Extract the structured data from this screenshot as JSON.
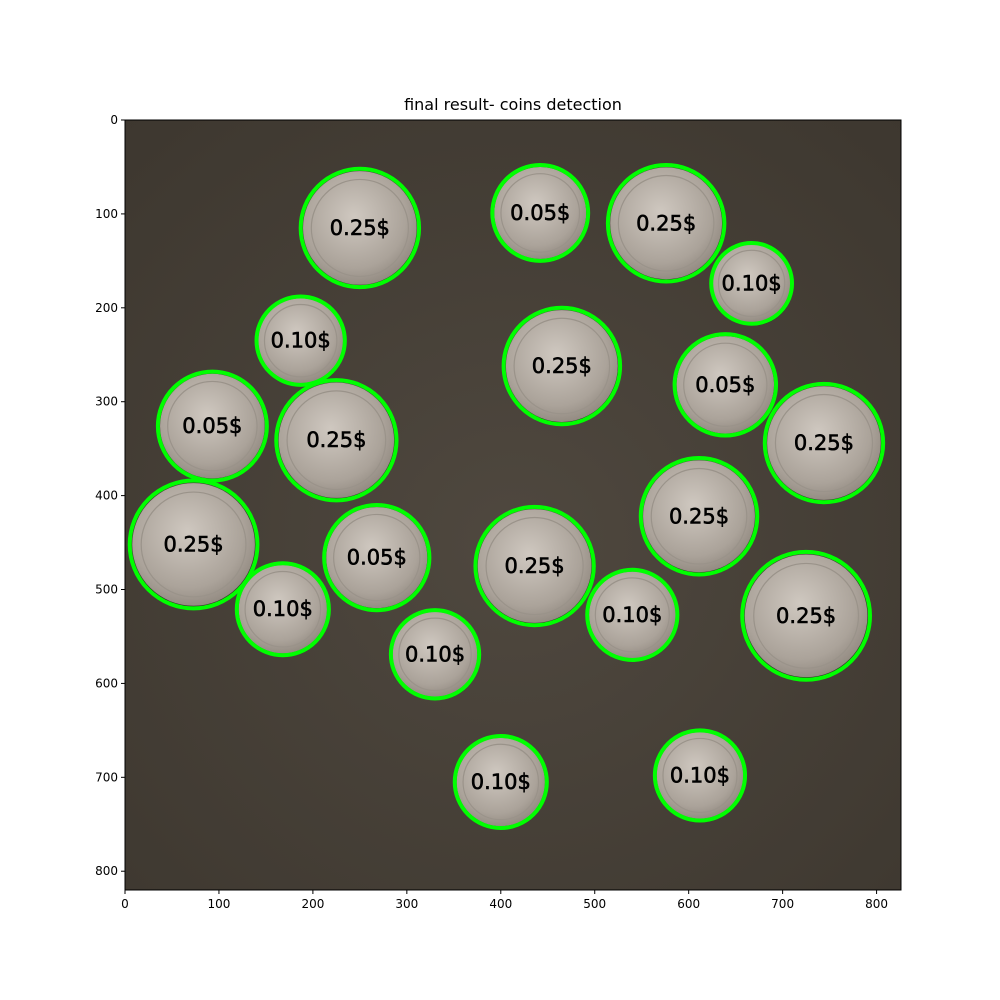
{
  "figure": {
    "title": "final result- coins detection"
  },
  "image_axes": {
    "x_ticks": [
      0,
      100,
      200,
      300,
      400,
      500,
      600,
      700,
      800
    ],
    "y_ticks": [
      0,
      100,
      200,
      300,
      400,
      500,
      600,
      700,
      800
    ],
    "x_range": [
      0,
      826
    ],
    "y_range": [
      0,
      820
    ],
    "grid": false
  },
  "colors": {
    "background": "#4a433b",
    "circle": "#00ff00",
    "coin_fill": "#b3aca4",
    "label_text": "#000000"
  },
  "detections": [
    {
      "label": "0.25$",
      "cx": 250,
      "cy": 115,
      "r": 63
    },
    {
      "label": "0.05$",
      "cx": 442,
      "cy": 99,
      "r": 51
    },
    {
      "label": "0.25$",
      "cx": 576,
      "cy": 110,
      "r": 62
    },
    {
      "label": "0.10$",
      "cx": 667,
      "cy": 174,
      "r": 43
    },
    {
      "label": "0.10$",
      "cx": 187,
      "cy": 235,
      "r": 47
    },
    {
      "label": "0.25$",
      "cx": 465,
      "cy": 262,
      "r": 62
    },
    {
      "label": "0.05$",
      "cx": 639,
      "cy": 282,
      "r": 54
    },
    {
      "label": "0.05$",
      "cx": 93,
      "cy": 326,
      "r": 58
    },
    {
      "label": "0.25$",
      "cx": 225,
      "cy": 341,
      "r": 64
    },
    {
      "label": "0.25$",
      "cx": 744,
      "cy": 344,
      "r": 63
    },
    {
      "label": "0.25$",
      "cx": 611,
      "cy": 422,
      "r": 62
    },
    {
      "label": "0.25$",
      "cx": 73,
      "cy": 452,
      "r": 68
    },
    {
      "label": "0.05$",
      "cx": 268,
      "cy": 466,
      "r": 56
    },
    {
      "label": "0.25$",
      "cx": 436,
      "cy": 475,
      "r": 63
    },
    {
      "label": "0.10$",
      "cx": 168,
      "cy": 521,
      "r": 49
    },
    {
      "label": "0.10$",
      "cx": 540,
      "cy": 527,
      "r": 48
    },
    {
      "label": "0.25$",
      "cx": 725,
      "cy": 528,
      "r": 68
    },
    {
      "label": "0.10$",
      "cx": 330,
      "cy": 569,
      "r": 47
    },
    {
      "label": "0.10$",
      "cx": 400,
      "cy": 705,
      "r": 49
    },
    {
      "label": "0.10$",
      "cx": 612,
      "cy": 698,
      "r": 48
    }
  ]
}
